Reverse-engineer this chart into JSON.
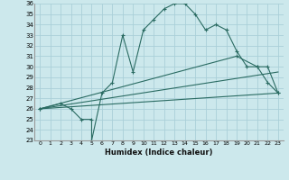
{
  "xlabel": "Humidex (Indice chaleur)",
  "bg_color": "#cce8ec",
  "grid_color": "#aad0d8",
  "line_color": "#2a6b62",
  "xlim": [
    -0.5,
    23.5
  ],
  "ylim": [
    23,
    36
  ],
  "xticks": [
    0,
    1,
    2,
    3,
    4,
    5,
    6,
    7,
    8,
    9,
    10,
    11,
    12,
    13,
    14,
    15,
    16,
    17,
    18,
    19,
    20,
    21,
    22,
    23
  ],
  "yticks": [
    23,
    24,
    25,
    26,
    27,
    28,
    29,
    30,
    31,
    32,
    33,
    34,
    35,
    36
  ],
  "lines": [
    {
      "x": [
        0,
        2,
        3,
        4,
        5,
        5,
        6,
        7,
        8,
        9,
        10,
        11,
        12,
        13,
        14,
        15,
        16,
        17,
        18,
        19,
        20,
        21,
        22,
        23
      ],
      "y": [
        26,
        26.5,
        26,
        25,
        25,
        23,
        27.5,
        28.5,
        33,
        29.5,
        33.5,
        34.5,
        35.5,
        36,
        36,
        35,
        33.5,
        34,
        33.5,
        31.5,
        30,
        30,
        28.5,
        27.5
      ],
      "marker": true
    },
    {
      "x": [
        0,
        19,
        21,
        22,
        23
      ],
      "y": [
        26,
        31,
        30,
        30,
        27.5
      ],
      "marker": true
    },
    {
      "x": [
        0,
        23
      ],
      "y": [
        26,
        29.5
      ],
      "marker": false
    },
    {
      "x": [
        0,
        23
      ],
      "y": [
        26,
        27.5
      ],
      "marker": false
    }
  ]
}
